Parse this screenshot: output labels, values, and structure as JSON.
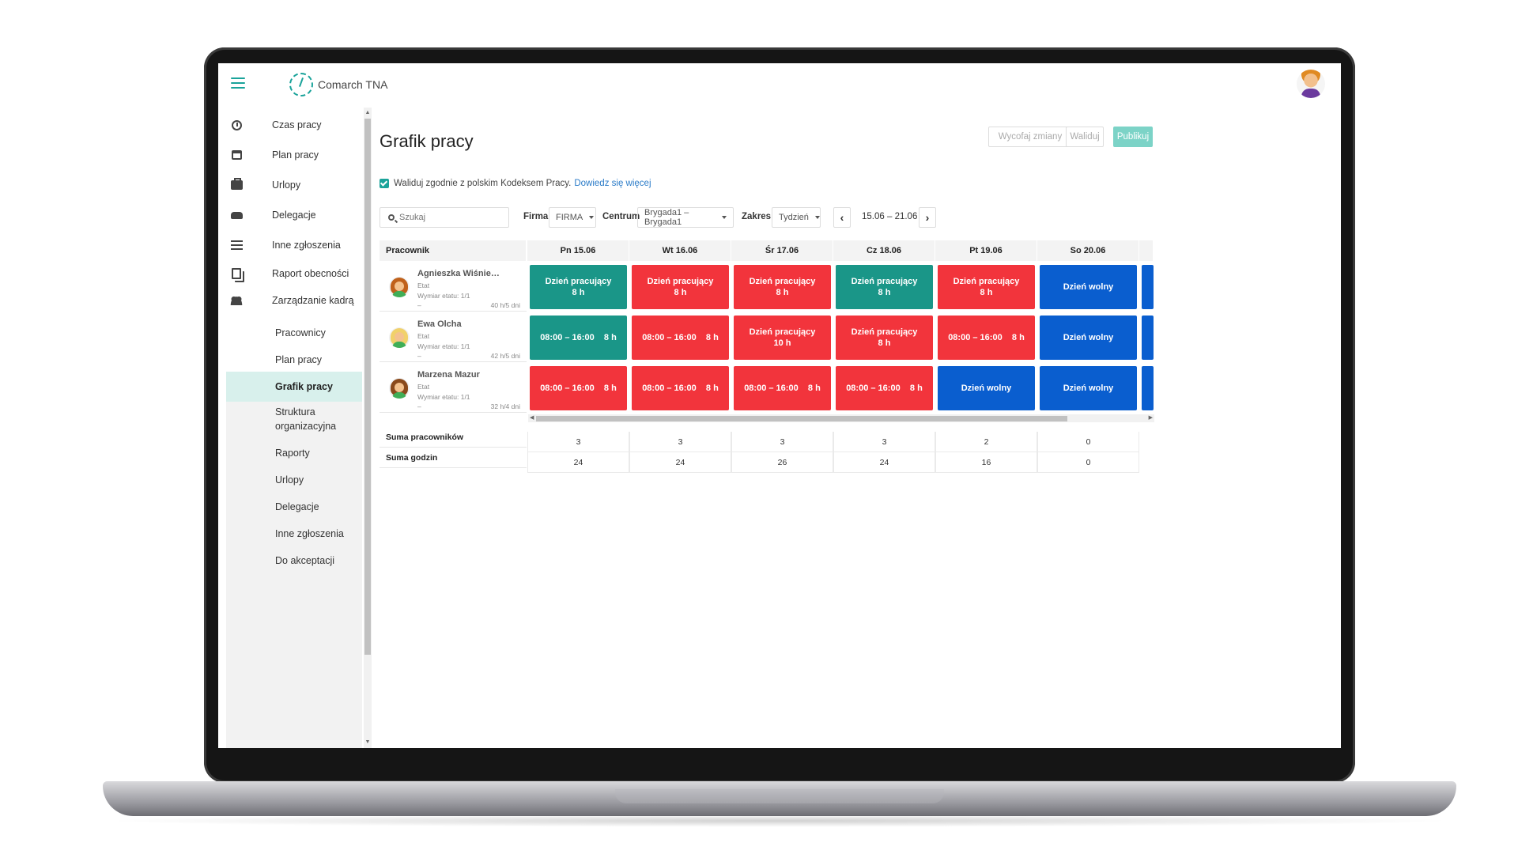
{
  "app": {
    "logo_text": "Comarch TNA"
  },
  "sidebar": {
    "items": [
      {
        "label": "Czas pracy",
        "icon": "clock-icon"
      },
      {
        "label": "Plan pracy",
        "icon": "calendar-icon"
      },
      {
        "label": "Urlopy",
        "icon": "briefcase-icon"
      },
      {
        "label": "Delegacje",
        "icon": "car-icon"
      },
      {
        "label": "Inne zgłoszenia",
        "icon": "list-icon"
      },
      {
        "label": "Raport obecności",
        "icon": "documents-icon"
      },
      {
        "label": "Zarządzanie kadrą",
        "icon": "users-icon"
      }
    ],
    "subitems": [
      {
        "label": "Pracownicy"
      },
      {
        "label": "Plan pracy"
      },
      {
        "label": "Grafik pracy",
        "active": true
      },
      {
        "label": "Struktura organizacyjna"
      },
      {
        "label": "Raporty"
      },
      {
        "label": "Urlopy"
      },
      {
        "label": "Delegacje"
      },
      {
        "label": "Inne zgłoszenia"
      },
      {
        "label": "Do akceptacji"
      }
    ]
  },
  "page": {
    "title": "Grafik pracy",
    "buttons": {
      "withdraw": "Wycofaj zmiany",
      "validate": "Waliduj",
      "publish": "Publikuj"
    },
    "validate_text": "Waliduj zgodnie z polskim Kodeksem Pracy.",
    "validate_link": "Dowiedz się więcej"
  },
  "filters": {
    "search_placeholder": "Szukaj",
    "company_label": "Firma",
    "company_value": "FIRMA",
    "center_label": "Centrum",
    "center_value": "Brygada1 – Brygada1",
    "range_label": "Zakres",
    "range_value": "Tydzień",
    "date_range": "15.06 – 21.06"
  },
  "grid": {
    "employee_header": "Pracownik",
    "days": [
      "Pn 15.06",
      "Wt 16.06",
      "Śr 17.06",
      "Cz 18.06",
      "Pt 19.06",
      "So 20.06"
    ],
    "employees": [
      {
        "name": "Agnieszka Wiśnie…",
        "type": "Etat",
        "fte": "Wymiar etatu: 1/1",
        "dash": "–",
        "hours": "40 h/5 dni",
        "hair_color": "#c0611b",
        "shifts": [
          {
            "kind": "work",
            "l1": "Dzień pracujący",
            "l2": "8 h"
          },
          {
            "kind": "over",
            "l1": "Dzień pracujący",
            "l2": "8 h"
          },
          {
            "kind": "over",
            "l1": "Dzień pracujący",
            "l2": "8 h"
          },
          {
            "kind": "work",
            "l1": "Dzień pracujący",
            "l2": "8 h"
          },
          {
            "kind": "over",
            "l1": "Dzień pracujący",
            "l2": "8 h"
          },
          {
            "kind": "free",
            "l1": "Dzień wolny",
            "l2": ""
          }
        ]
      },
      {
        "name": "Ewa Olcha",
        "type": "Etat",
        "fte": "Wymiar etatu: 1/1",
        "dash": "–",
        "hours": "42 h/5 dni",
        "hair_color": "#f1d16a",
        "shifts": [
          {
            "kind": "work",
            "l1": "08:00 – 16:00    8 h",
            "l2": ""
          },
          {
            "kind": "over",
            "l1": "08:00 – 16:00    8 h",
            "l2": ""
          },
          {
            "kind": "over",
            "l1": "Dzień pracujący",
            "l2": "10 h"
          },
          {
            "kind": "over",
            "l1": "Dzień pracujący",
            "l2": "8 h"
          },
          {
            "kind": "over",
            "l1": "08:00 – 16:00    8 h",
            "l2": ""
          },
          {
            "kind": "free",
            "l1": "Dzień wolny",
            "l2": ""
          }
        ]
      },
      {
        "name": "Marzena Mazur",
        "type": "Etat",
        "fte": "Wymiar etatu: 1/1",
        "dash": "–",
        "hours": "32 h/4 dni",
        "hair_color": "#8a4a1c",
        "shifts": [
          {
            "kind": "over",
            "l1": "08:00 – 16:00    8 h",
            "l2": ""
          },
          {
            "kind": "over",
            "l1": "08:00 – 16:00    8 h",
            "l2": ""
          },
          {
            "kind": "over",
            "l1": "08:00 – 16:00    8 h",
            "l2": ""
          },
          {
            "kind": "over",
            "l1": "08:00 – 16:00    8 h",
            "l2": ""
          },
          {
            "kind": "free",
            "l1": "Dzień wolny",
            "l2": ""
          },
          {
            "kind": "free",
            "l1": "Dzień wolny",
            "l2": ""
          }
        ]
      }
    ],
    "sum_employees_label": "Suma pracowników",
    "sum_hours_label": "Suma godzin",
    "sum_employees": [
      "3",
      "3",
      "3",
      "3",
      "2",
      "0"
    ],
    "sum_hours": [
      "24",
      "24",
      "26",
      "24",
      "16",
      "0"
    ]
  },
  "colors": {
    "accent": "#1aa39a",
    "work": "#1a9688",
    "over": "#f2343c",
    "free": "#0a5ecf"
  }
}
